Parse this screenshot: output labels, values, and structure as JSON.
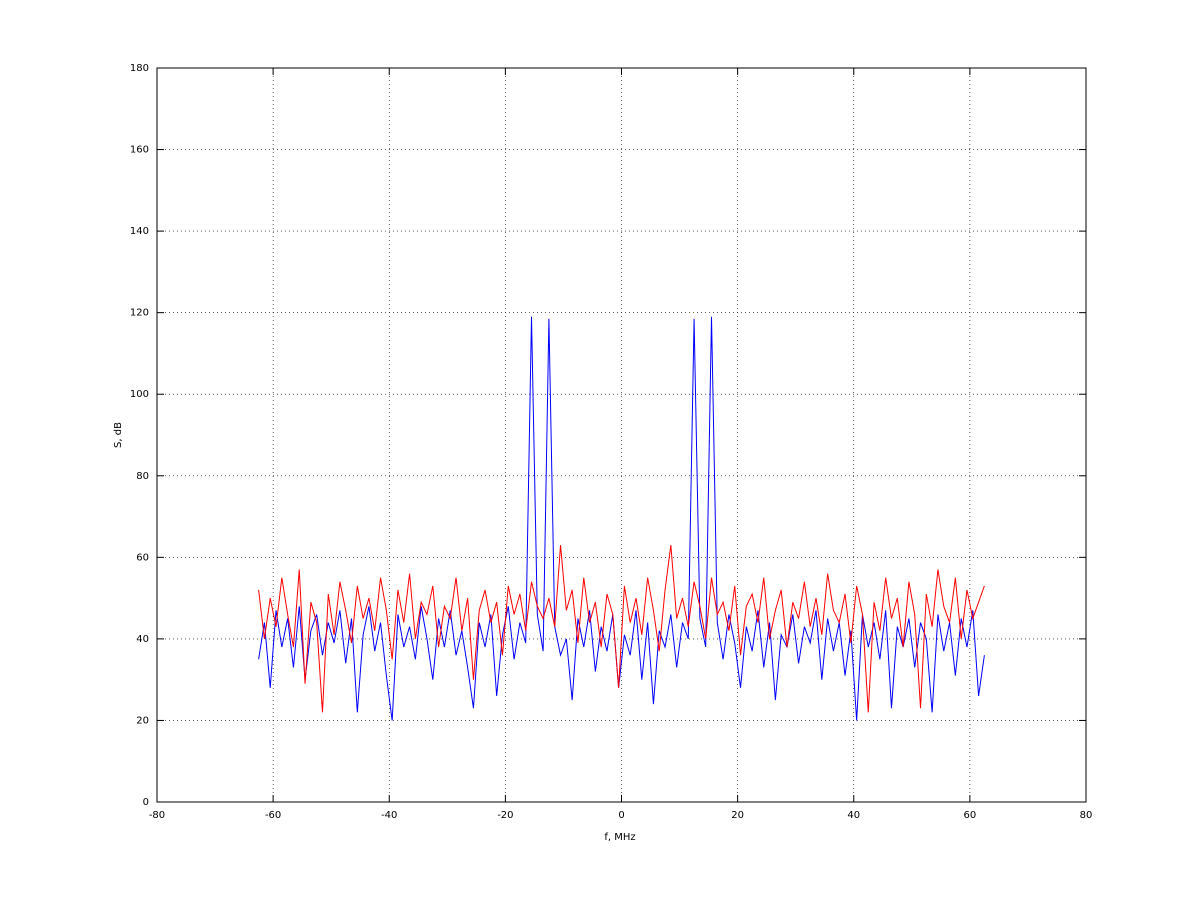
{
  "chart_data": {
    "type": "line",
    "xlabel": "f, MHz",
    "ylabel": "S, dB",
    "x": [
      -62.5,
      -61.5,
      -60.5,
      -59.5,
      -58.5,
      -57.5,
      -56.5,
      -55.5,
      -54.5,
      -53.5,
      -52.5,
      -51.5,
      -50.5,
      -49.5,
      -48.5,
      -47.5,
      -46.5,
      -45.5,
      -44.5,
      -43.5,
      -42.5,
      -41.5,
      -40.5,
      -39.5,
      -38.5,
      -37.5,
      -36.5,
      -35.5,
      -34.5,
      -33.5,
      -32.5,
      -31.5,
      -30.5,
      -29.5,
      -28.5,
      -27.5,
      -26.5,
      -25.5,
      -24.5,
      -23.5,
      -22.5,
      -21.5,
      -20.5,
      -19.5,
      -18.5,
      -17.5,
      -16.5,
      -15.5,
      -14.5,
      -13.5,
      -12.5,
      -11.5,
      -10.5,
      -9.5,
      -8.5,
      -7.5,
      -6.5,
      -5.5,
      -4.5,
      -3.5,
      -2.5,
      -1.5,
      -0.5,
      0.5,
      1.5,
      2.5,
      3.5,
      4.5,
      5.5,
      6.5,
      7.5,
      8.5,
      9.5,
      10.5,
      11.5,
      12.5,
      13.5,
      14.5,
      15.5,
      16.5,
      17.5,
      18.5,
      19.5,
      20.5,
      21.5,
      22.5,
      23.5,
      24.5,
      25.5,
      26.5,
      27.5,
      28.5,
      29.5,
      30.5,
      31.5,
      32.5,
      33.5,
      34.5,
      35.5,
      36.5,
      37.5,
      38.5,
      39.5,
      40.5,
      41.5,
      42.5,
      43.5,
      44.5,
      45.5,
      46.5,
      47.5,
      48.5,
      49.5,
      50.5,
      51.5,
      52.5,
      53.5,
      54.5,
      55.5,
      56.5,
      57.5,
      58.5,
      59.5,
      60.5,
      61.5,
      62.5
    ],
    "series": [
      {
        "color": "#0000ff",
        "values": [
          35,
          44,
          28,
          47,
          38,
          45,
          33,
          48,
          30,
          42,
          46,
          36,
          44,
          39,
          47,
          34,
          45,
          22,
          41,
          48,
          37,
          44,
          31,
          20,
          46,
          38,
          43,
          35,
          48,
          40,
          30,
          45,
          38,
          47,
          36,
          42,
          33,
          23,
          44,
          38,
          46,
          26,
          41,
          48,
          35,
          44,
          39,
          119,
          46,
          37,
          118.5,
          43,
          36,
          40,
          25,
          45,
          38,
          47,
          32,
          43,
          37,
          46,
          28,
          41,
          36,
          47,
          30,
          44,
          24,
          42,
          38,
          46,
          33,
          44,
          40,
          118.5,
          45,
          38,
          119,
          44,
          35,
          46,
          39,
          28,
          43,
          37,
          47,
          33,
          44,
          25,
          41,
          38,
          46,
          34,
          43,
          39,
          47,
          30,
          45,
          37,
          44,
          31,
          42,
          20,
          46,
          38,
          44,
          35,
          47,
          23,
          43,
          38,
          45,
          33,
          44,
          40,
          22,
          46,
          37,
          44,
          31,
          45,
          38,
          47,
          26,
          36
        ]
      },
      {
        "color": "#ff0000",
        "values": [
          52,
          40,
          50,
          43,
          55,
          46,
          38,
          57,
          29,
          49,
          44,
          22,
          51,
          41,
          54,
          47,
          39,
          53,
          45,
          50,
          42,
          55,
          47,
          35,
          52,
          44,
          56,
          40,
          49,
          46,
          53,
          38,
          48,
          45,
          55,
          42,
          50,
          30,
          47,
          52,
          44,
          49,
          36,
          53,
          46,
          51,
          42,
          54,
          48,
          45,
          50,
          43,
          63,
          47,
          52,
          39,
          55,
          44,
          49,
          38,
          51,
          46,
          28,
          53,
          44,
          50,
          41,
          55,
          47,
          37,
          52,
          63,
          45,
          50,
          43,
          54,
          48,
          40,
          55,
          46,
          49,
          42,
          53,
          36,
          48,
          51,
          44,
          55,
          40,
          47,
          52,
          38,
          49,
          45,
          54,
          43,
          50,
          41,
          56,
          47,
          44,
          51,
          39,
          53,
          46,
          22,
          49,
          42,
          55,
          45,
          50,
          38,
          54,
          46,
          23,
          51,
          43,
          57,
          48,
          44,
          55,
          40,
          52,
          45,
          49,
          53
        ]
      }
    ],
    "xlim": [
      -80,
      80
    ],
    "xticks": [
      -80,
      -60,
      -40,
      -20,
      0,
      20,
      40,
      60,
      80
    ],
    "ylim": [
      0,
      180
    ],
    "yticks": [
      0,
      20,
      40,
      60,
      80,
      100,
      120,
      140,
      160,
      180
    ],
    "grid": true
  }
}
